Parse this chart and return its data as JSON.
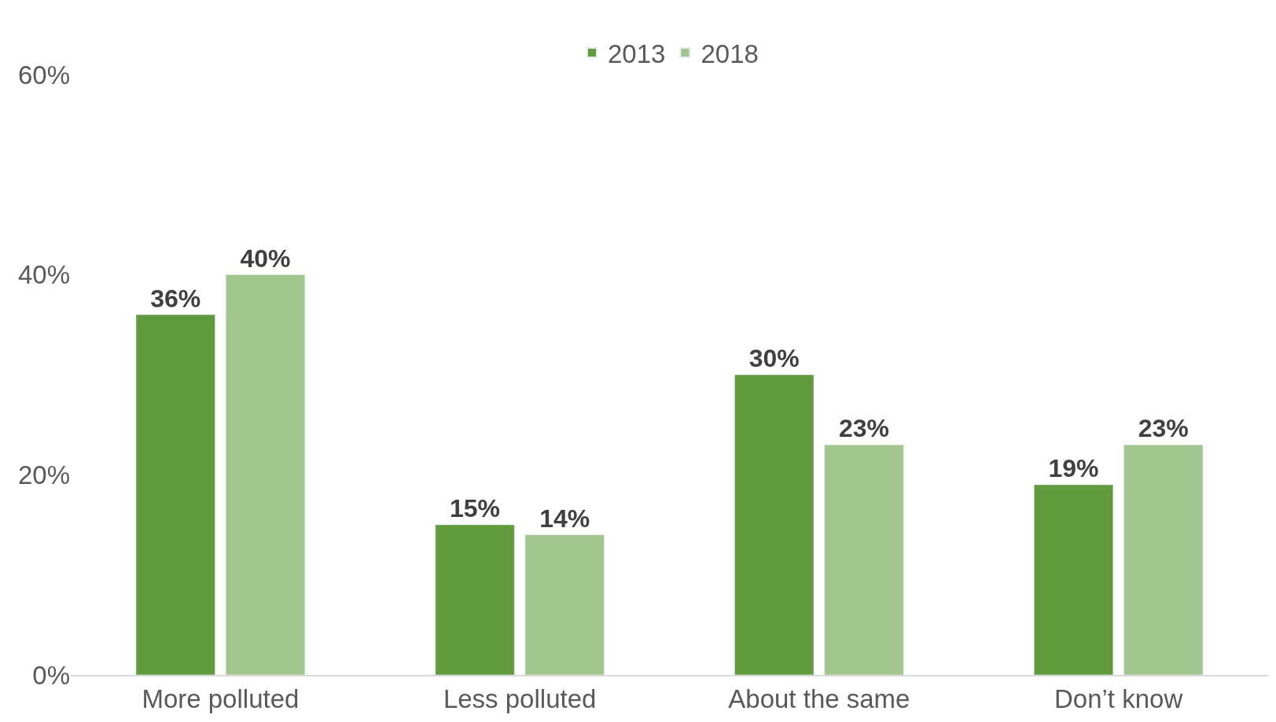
{
  "chart_data": {
    "type": "bar",
    "categories": [
      "More polluted",
      "Less polluted",
      "About the same",
      "Don’t know"
    ],
    "series": [
      {
        "name": "2013",
        "color": "#629b3e",
        "values": [
          36,
          15,
          30,
          19
        ],
        "value_labels": [
          "36%",
          "15%",
          "30%",
          "19%"
        ]
      },
      {
        "name": "2018",
        "color": "#a3c58f",
        "values": [
          40,
          14,
          23,
          23
        ],
        "value_labels": [
          "40%",
          "14%",
          "23%",
          "23%"
        ]
      }
    ],
    "ylim": [
      0,
      60
    ],
    "yticks": [
      {
        "value": 0,
        "label": "0%"
      },
      {
        "value": 20,
        "label": "20%"
      },
      {
        "value": 40,
        "label": "40%"
      },
      {
        "value": 60,
        "label": "60%"
      }
    ],
    "legend": "top"
  }
}
